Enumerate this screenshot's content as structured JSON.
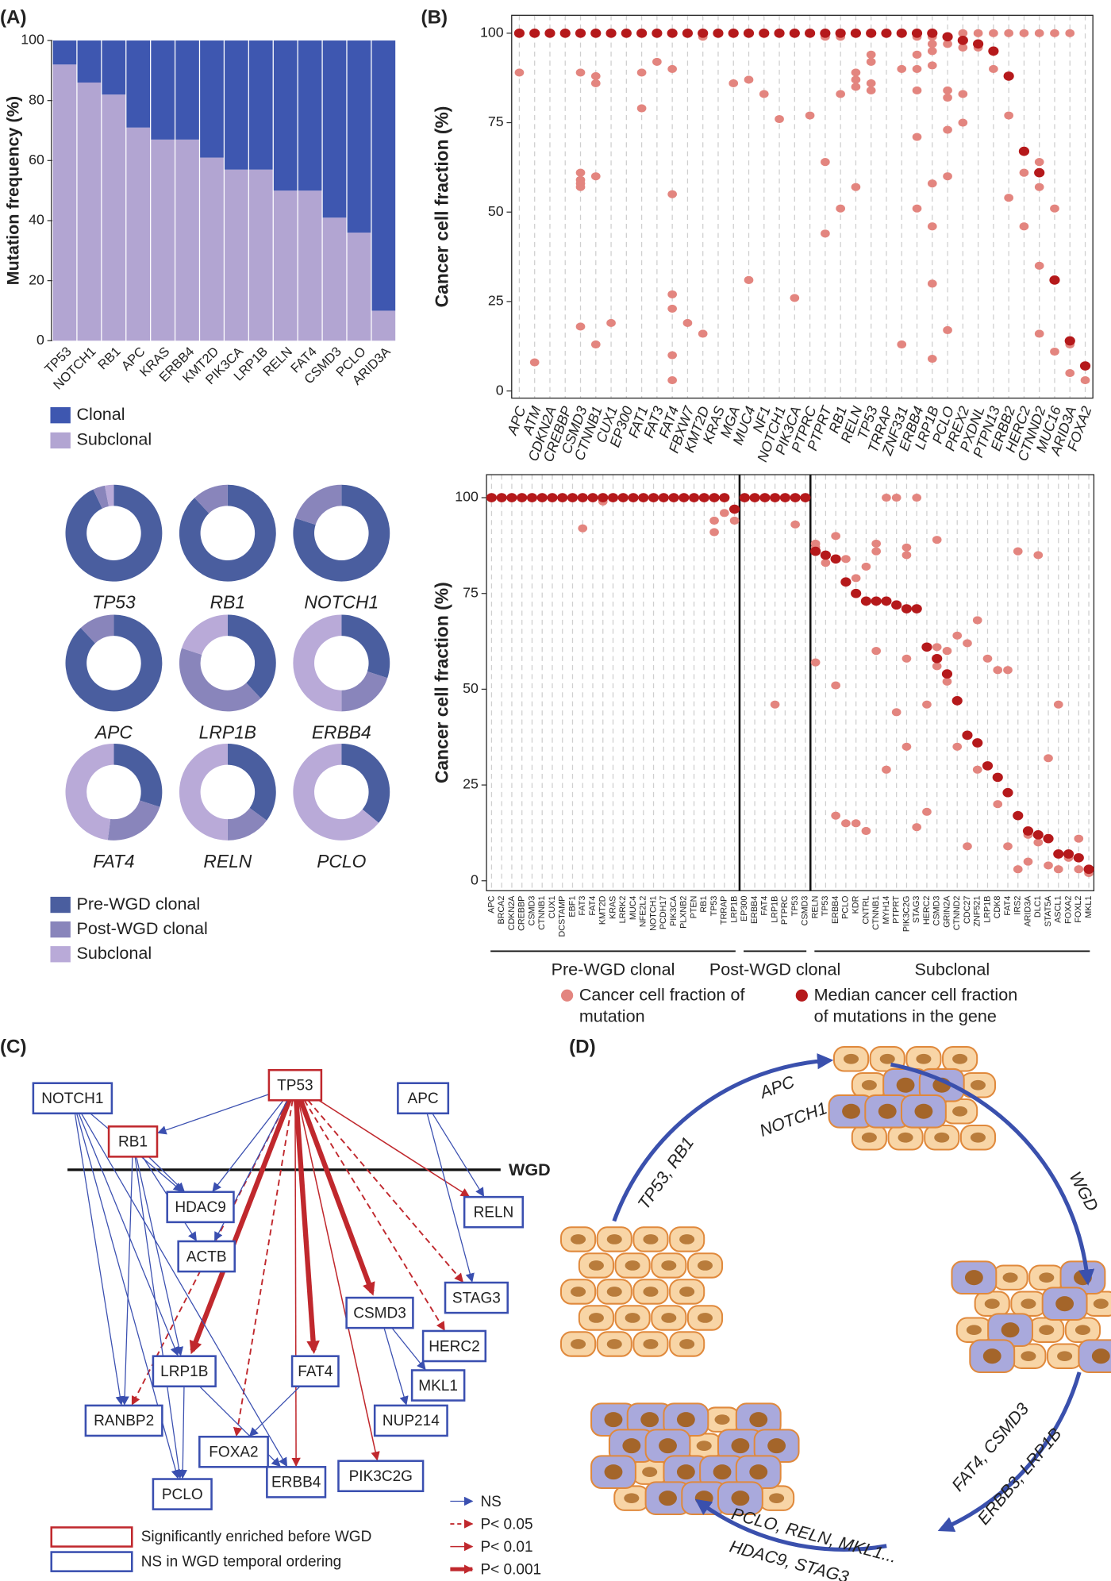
{
  "panels": [
    "(A)",
    "(B)",
    "(C)",
    "(D)"
  ],
  "chart_data": [
    {
      "type": "bar",
      "stacked": true,
      "ylabel": "Mutation frequency (%)",
      "categories": [
        "TP53",
        "NOTCH1",
        "RB1",
        "APC",
        "KRAS",
        "ERBB4",
        "KMT2D",
        "PIK3CA",
        "LRP1B",
        "RELN",
        "FAT4",
        "CSMD3",
        "PCLO",
        "ARID3A"
      ],
      "series": [
        {
          "name": "Clonal",
          "color": "#3e57b0",
          "values": [
            8,
            14,
            18,
            29,
            33,
            33,
            39,
            43,
            43,
            50,
            50,
            59,
            64,
            90
          ]
        },
        {
          "name": "Subclonal",
          "color": "#b2a5d2",
          "values": [
            92,
            86,
            82,
            71,
            67,
            67,
            61,
            57,
            57,
            50,
            50,
            41,
            36,
            10
          ]
        }
      ],
      "ylim": [
        0,
        100
      ],
      "yticks": [
        0,
        20,
        40,
        60,
        80,
        100
      ]
    },
    {
      "type": "donut",
      "categories": [
        "Pre-WGD clonal",
        "Post-WGD clonal",
        "Subclonal"
      ],
      "colors": [
        "#4a5e9f",
        "#8985bb",
        "#b9aad8"
      ],
      "pies": [
        {
          "title": "TP53",
          "values": [
            93,
            4,
            3
          ]
        },
        {
          "title": "RB1",
          "values": [
            88,
            12,
            0
          ]
        },
        {
          "title": "NOTCH1",
          "values": [
            80,
            20,
            0
          ]
        },
        {
          "title": "APC",
          "values": [
            88,
            12,
            0
          ]
        },
        {
          "title": "LRP1B",
          "values": [
            38,
            42,
            20
          ]
        },
        {
          "title": "ERBB4",
          "values": [
            30,
            20,
            50
          ]
        },
        {
          "title": "FAT4",
          "values": [
            30,
            22,
            48
          ]
        },
        {
          "title": "RELN",
          "values": [
            35,
            15,
            50
          ]
        },
        {
          "title": "PCLO",
          "values": [
            36,
            0,
            64
          ]
        }
      ]
    },
    {
      "type": "dot",
      "ylabel": "Cancer cell fraction (%)",
      "categories": [
        "APC",
        "ATM",
        "CDKN2A",
        "CREBBP",
        "CSMD3",
        "CTNNB1",
        "CUX1",
        "EP300",
        "FAT1",
        "FAT3",
        "FAT4",
        "FBXW7",
        "KMT2D",
        "KRAS",
        "MGA",
        "MUC4",
        "NF1",
        "NOTCH1",
        "PIK3CA",
        "PTPRC",
        "PTPRT",
        "RB1",
        "RELN",
        "TP53",
        "TRRAP",
        "ZNF331",
        "ERBB4",
        "LRP1B",
        "PCLO",
        "PREX2",
        "PXDNL",
        "PTPN13",
        "ERBB2",
        "HERC2",
        "CTNND2",
        "MUC16",
        "ARID3A",
        "FOXA2"
      ],
      "ylim": [
        -2,
        105
      ],
      "yticks": [
        0,
        25,
        50,
        75,
        100
      ],
      "series": [
        {
          "color": "#e3857f",
          "values": [
            [
              89
            ],
            [
              8
            ],
            [],
            [],
            [
              89,
              61,
              59,
              58,
              57,
              18
            ],
            [
              88,
              86,
              60,
              13
            ],
            [
              19
            ],
            [],
            [
              89,
              79
            ],
            [
              92
            ],
            [
              90,
              55,
              27,
              23,
              10,
              3
            ],
            [
              19
            ],
            [
              99,
              16
            ],
            [],
            [
              86
            ],
            [
              87,
              31
            ],
            [
              83
            ],
            [
              76
            ],
            [
              26
            ],
            [
              77
            ],
            [
              99,
              64,
              44
            ],
            [
              99,
              83,
              51
            ],
            [
              89,
              87,
              85,
              57
            ],
            [
              94,
              92,
              86,
              84
            ],
            [],
            [
              90,
              13
            ],
            [
              99,
              94,
              90,
              84,
              71,
              51
            ],
            [
              99,
              97,
              95,
              91,
              58,
              46,
              30,
              9
            ],
            [
              97,
              84,
              82,
              73,
              60,
              17
            ],
            [
              100,
              96,
              83,
              75
            ],
            [
              100,
              96
            ],
            [
              100,
              90
            ],
            [
              100,
              77,
              54
            ],
            [
              100,
              61,
              46
            ],
            [
              100,
              64,
              57,
              35,
              16
            ],
            [
              100,
              51,
              11
            ],
            [
              100,
              13,
              5
            ],
            [
              3
            ]
          ]
        },
        {
          "color": "#b5191b",
          "values": [
            100,
            100,
            100,
            100,
            100,
            100,
            100,
            100,
            100,
            100,
            100,
            100,
            100,
            100,
            100,
            100,
            100,
            100,
            100,
            100,
            100,
            100,
            100,
            100,
            100,
            100,
            100,
            100,
            99,
            98,
            97,
            95,
            88,
            67,
            61,
            31,
            14,
            7
          ]
        }
      ]
    },
    {
      "type": "dot",
      "ylabel": "Cancer cell fraction (%)",
      "groups": [
        {
          "name": "Pre-WGD clonal",
          "categories": [
            "APC",
            "BRCA2",
            "CDKN2A",
            "CREBBP",
            "CSMD3",
            "CTNNB1",
            "CUX1",
            "DCSTAMP",
            "EBF1",
            "FAT3",
            "FAT4",
            "KMT2D",
            "KRAS",
            "LRRK2",
            "MUC4",
            "NFE2L2",
            "NOTCH1",
            "PCDH17",
            "PIK3CA",
            "PLXNB2",
            "PTEN",
            "RB1",
            "TP53",
            "TRRAP",
            "LRP1B"
          ]
        },
        {
          "name": "Post-WGD clonal",
          "categories": [
            "EP300",
            "ERBB4",
            "FAT4",
            "LRP1B",
            "PTPRC",
            "TP53",
            "CSMD3"
          ]
        },
        {
          "name": "Subclonal",
          "categories": [
            "RELN",
            "TP53",
            "ERBB4",
            "PCLO",
            "KDR",
            "CNTRL",
            "CTNNB1",
            "MYH14",
            "PTPRT",
            "PIK3C2G",
            "STAG3",
            "HERC2",
            "CSMD3",
            "GRIN2A",
            "CTNND2",
            "CDC27",
            "ZNF521",
            "LRP1B",
            "CDK8",
            "FAT4",
            "IRS2",
            "ARID3A",
            "DLC1",
            "STAT5A",
            "ASCL1",
            "FOXA2",
            "FOXL2",
            "MKL1"
          ]
        }
      ],
      "ylim": [
        -2.6,
        106
      ],
      "yticks": [
        0,
        25,
        50,
        75,
        100
      ],
      "series": [
        {
          "name": "Cancer cell fraction of mutation",
          "color": "#e3857f",
          "values": [
            [],
            [],
            [],
            [],
            [],
            [],
            [],
            [],
            [],
            [
              92
            ],
            [],
            [
              99
            ],
            [],
            [],
            [],
            [],
            [],
            [],
            [],
            [],
            [],
            [],
            [
              94,
              91
            ],
            [
              96
            ],
            [
              94
            ],
            [],
            [],
            [],
            [
              46
            ],
            [],
            [
              93
            ],
            [],
            [
              88,
              87,
              57
            ],
            [
              83
            ],
            [
              90,
              51,
              17
            ],
            [
              84,
              15
            ],
            [
              79,
              15
            ],
            [
              82,
              13
            ],
            [
              88,
              86,
              60
            ],
            [
              100,
              29
            ],
            [
              100,
              44
            ],
            [
              87,
              85,
              58,
              35
            ],
            [
              100,
              14
            ],
            [
              46,
              18
            ],
            [
              89,
              61,
              56
            ],
            [
              60,
              52
            ],
            [
              64,
              35
            ],
            [
              62,
              9
            ],
            [
              68,
              29
            ],
            [
              58,
              30
            ],
            [
              55,
              20
            ],
            [
              55,
              9
            ],
            [
              86,
              3
            ],
            [
              12,
              5
            ],
            [
              85,
              10
            ],
            [
              32,
              4
            ],
            [
              46,
              3
            ],
            [
              6
            ],
            [
              11,
              3
            ],
            [
              2
            ]
          ]
        },
        {
          "name": "Median cancer cell fraction of mutations in the gene",
          "color": "#b5191b",
          "values": [
            100,
            100,
            100,
            100,
            100,
            100,
            100,
            100,
            100,
            100,
            100,
            100,
            100,
            100,
            100,
            100,
            100,
            100,
            100,
            100,
            100,
            100,
            100,
            100,
            97,
            100,
            100,
            100,
            100,
            100,
            100,
            100,
            86,
            85,
            84,
            78,
            75,
            73,
            73,
            73,
            72,
            71,
            71,
            61,
            58,
            54,
            47,
            38,
            36,
            30,
            27,
            23,
            17,
            13,
            12,
            11,
            7,
            7,
            6,
            3
          ]
        }
      ]
    }
  ],
  "network": {
    "nodes": [
      {
        "label": "NOTCH1",
        "color": "#3a4fb0"
      },
      {
        "label": "TP53",
        "color": "#c0282d"
      },
      {
        "label": "APC",
        "color": "#3a4fb0"
      },
      {
        "label": "RB1",
        "color": "#c0282d"
      },
      {
        "label": "HDAC9",
        "color": "#3a4fb0"
      },
      {
        "label": "RELN",
        "color": "#3a4fb0"
      },
      {
        "label": "ACTB",
        "color": "#3a4fb0"
      },
      {
        "label": "STAG3",
        "color": "#3a4fb0"
      },
      {
        "label": "CSMD3",
        "color": "#3a4fb0"
      },
      {
        "label": "HERC2",
        "color": "#3a4fb0"
      },
      {
        "label": "LRP1B",
        "color": "#3a4fb0"
      },
      {
        "label": "FAT4",
        "color": "#3a4fb0"
      },
      {
        "label": "MKL1",
        "color": "#3a4fb0"
      },
      {
        "label": "NUP214",
        "color": "#3a4fb0"
      },
      {
        "label": "RANBP2",
        "color": "#3a4fb0"
      },
      {
        "label": "FOXA2",
        "color": "#3a4fb0"
      },
      {
        "label": "ERBB4",
        "color": "#3a4fb0"
      },
      {
        "label": "PIK3C2G",
        "color": "#3a4fb0"
      },
      {
        "label": "PCLO",
        "color": "#3a4fb0"
      }
    ],
    "wgd": "WGD",
    "node_legend": [
      {
        "label": "Significantly enriched before WGD",
        "color": "#c0282d"
      },
      {
        "label": "NS in WGD temporal ordering",
        "color": "#3a4fb0"
      }
    ],
    "edge_legend": [
      "NS",
      "P< 0.05",
      "P< 0.01",
      "P< 0.001"
    ]
  },
  "cycle": {
    "labels": [
      "APC",
      "NOTCH1",
      "TP53, RB1",
      "WGD",
      "FAT4, CSMD3",
      "ERBB3, LRP1B",
      "PCLO, RELN, MKL1...",
      "HDAC9, STAG3..."
    ]
  }
}
